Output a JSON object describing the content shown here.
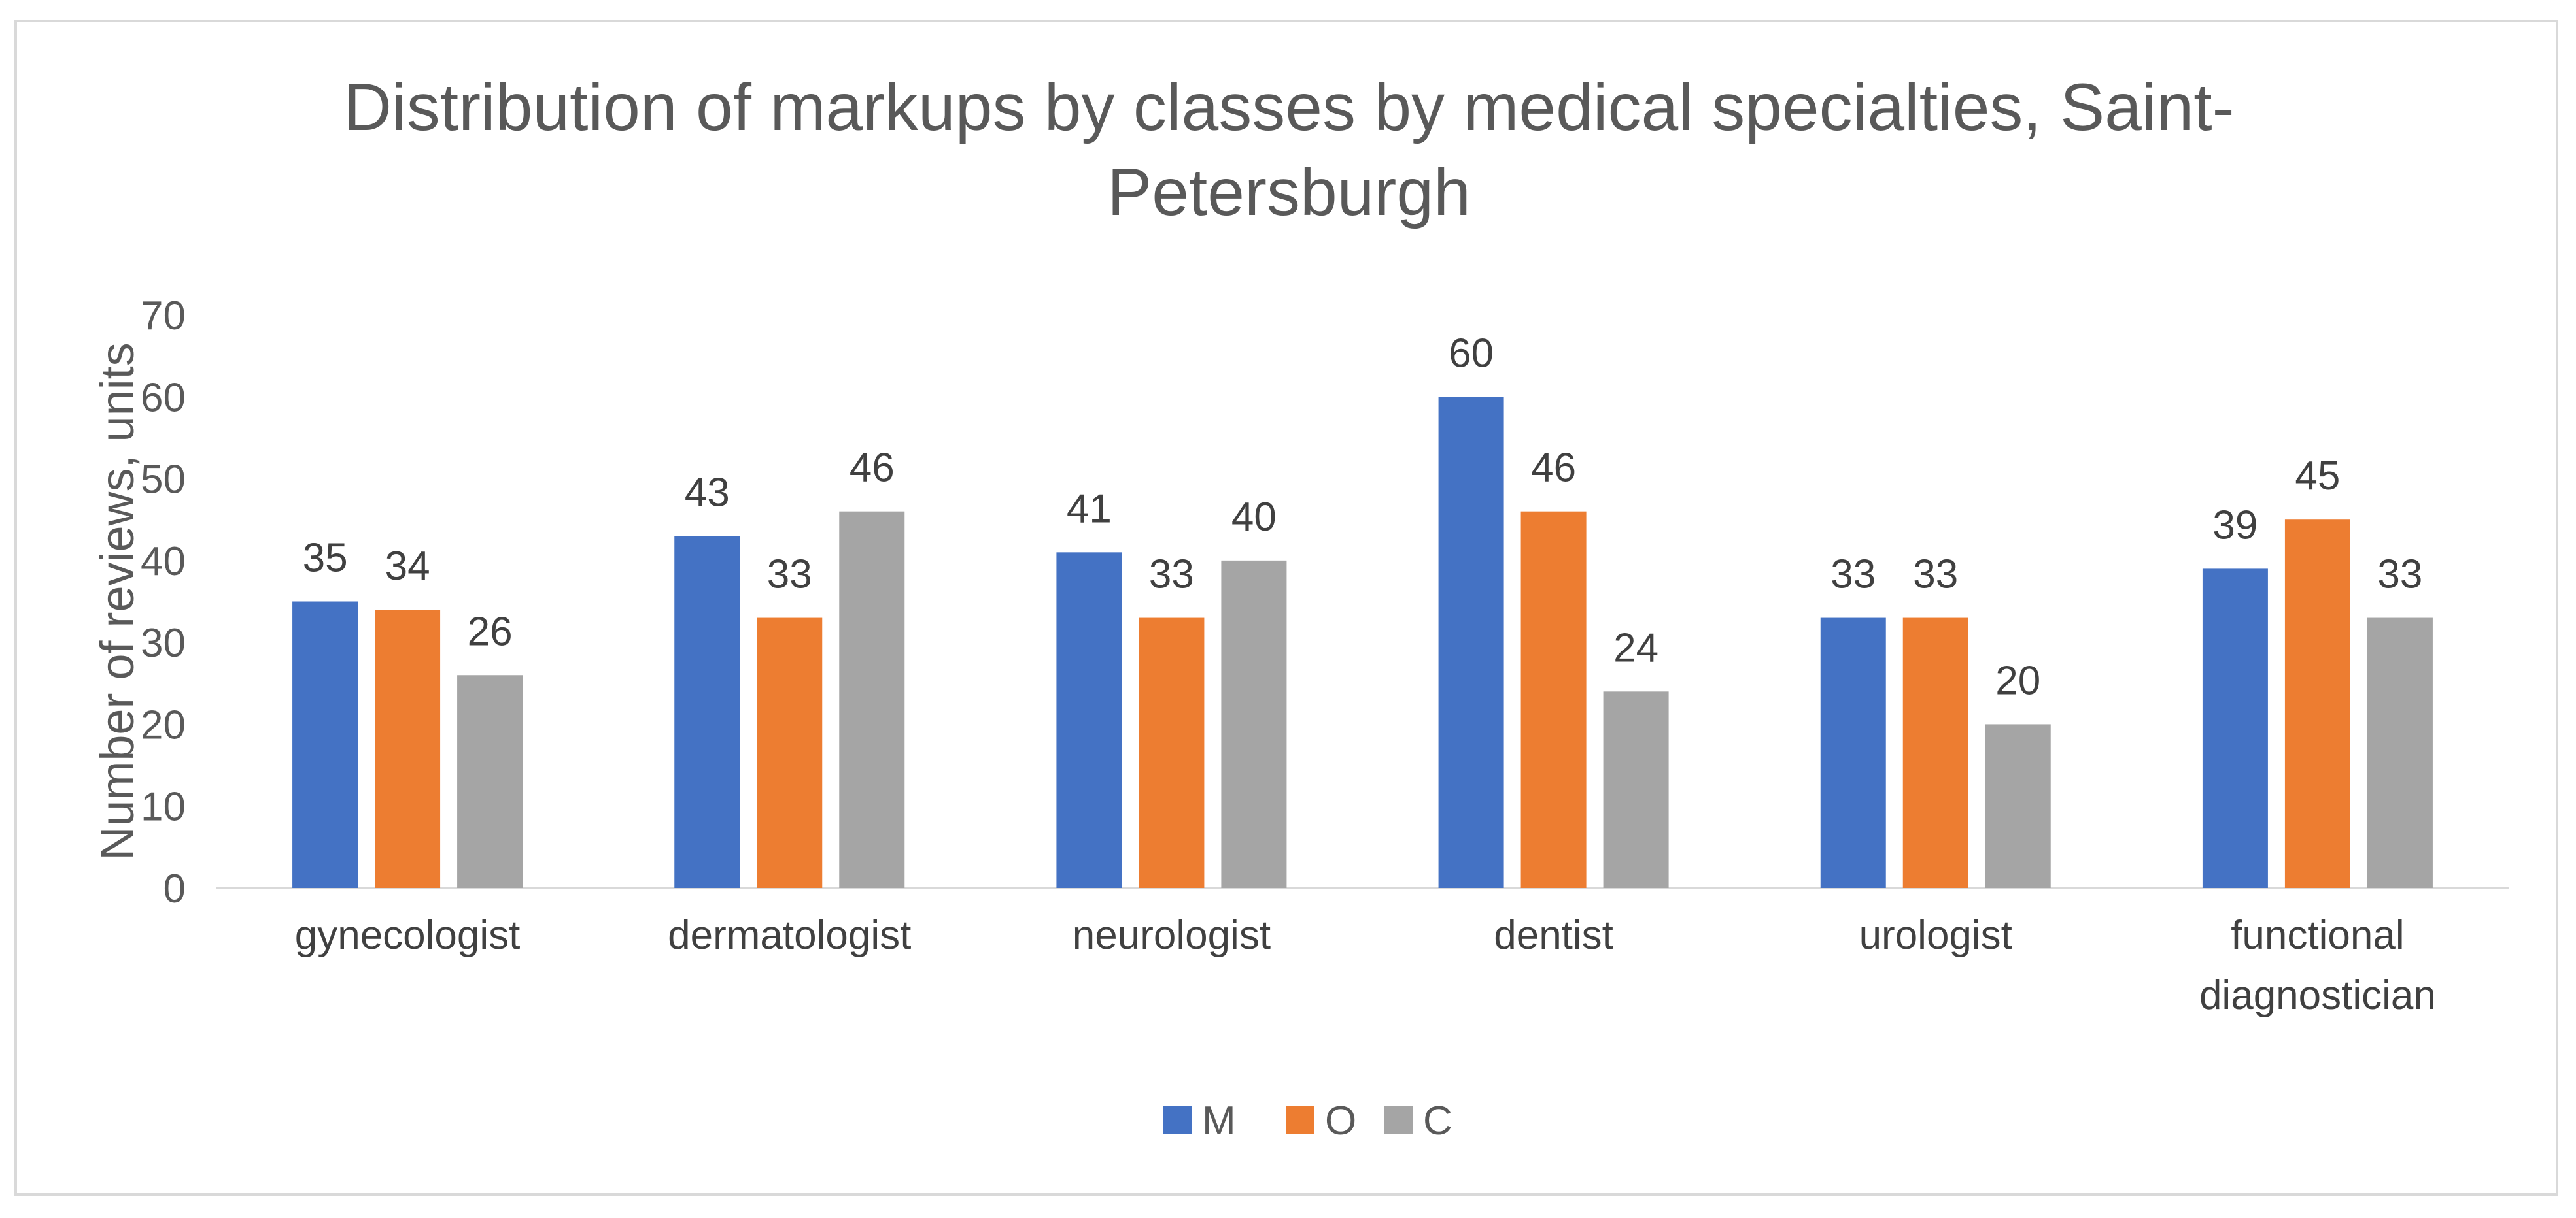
{
  "chart_data": {
    "type": "bar",
    "title": "Distribution of markups by classes by medical specialties, Saint-Petersburgh",
    "title_lines": [
      "Distribution of markups by classes by medical specialties, Saint-",
      "Petersburgh"
    ],
    "xlabel": "",
    "ylabel": "Number of reviews, units",
    "ylim": [
      0,
      70
    ],
    "yticks": [
      0,
      10,
      20,
      30,
      40,
      50,
      60,
      70
    ],
    "grid": false,
    "legend_position": "bottom",
    "categories": [
      "gynecologist",
      "dermatologist",
      "neurologist",
      "dentist",
      "urologist",
      "functional diagnostician"
    ],
    "category_lines": [
      [
        "gynecologist"
      ],
      [
        "dermatologist"
      ],
      [
        "neurologist"
      ],
      [
        "dentist"
      ],
      [
        "urologist"
      ],
      [
        "functional",
        "diagnostician"
      ]
    ],
    "series": [
      {
        "name": "M",
        "color": "#4472c4",
        "values": [
          35,
          43,
          41,
          60,
          33,
          39
        ]
      },
      {
        "name": "O",
        "color": "#ed7d31",
        "values": [
          34,
          33,
          33,
          46,
          33,
          45
        ]
      },
      {
        "name": "C",
        "color": "#a5a5a5",
        "values": [
          26,
          46,
          40,
          24,
          20,
          33
        ]
      }
    ]
  }
}
